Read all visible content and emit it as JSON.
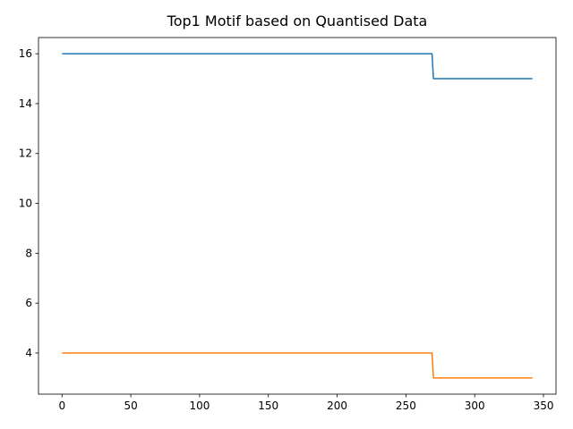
{
  "chart_data": {
    "type": "line",
    "title": "Top1 Motif based on Quantised Data",
    "xlabel": "",
    "ylabel": "",
    "xlim": [
      -17.1,
      359.1
    ],
    "ylim": [
      2.35,
      16.65
    ],
    "xticks": [
      0,
      50,
      100,
      150,
      200,
      250,
      300,
      350
    ],
    "yticks": [
      4,
      6,
      8,
      10,
      12,
      14,
      16
    ],
    "grid": false,
    "legend": "none",
    "series": [
      {
        "name": "series-1",
        "color": "#1f77b4",
        "x": [
          0,
          269,
          270,
          342
        ],
        "y": [
          16,
          16,
          15,
          15
        ]
      },
      {
        "name": "series-2",
        "color": "#ff7f0e",
        "x": [
          0,
          269,
          270,
          342
        ],
        "y": [
          4,
          4,
          3,
          3
        ]
      }
    ]
  }
}
